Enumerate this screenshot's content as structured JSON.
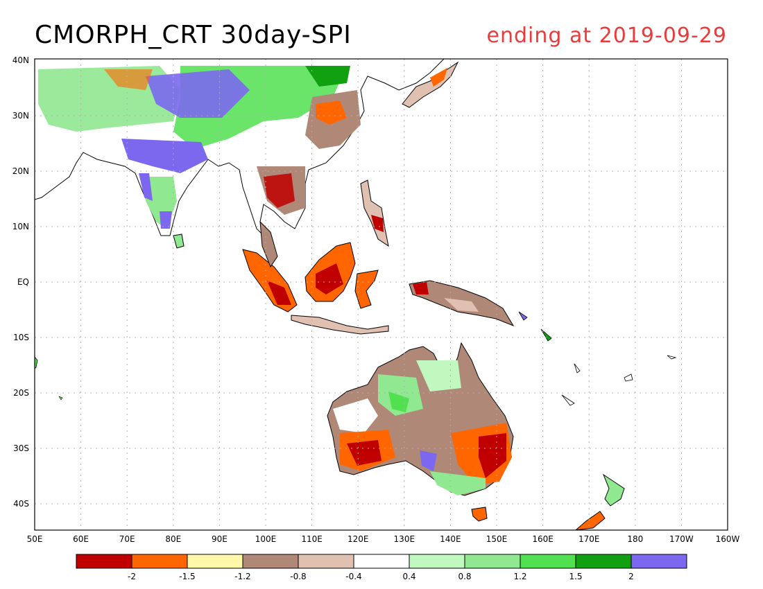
{
  "title": "CMORPH_CRT 30day-SPI",
  "subtitle": "ending at 2019-09-29",
  "map": {
    "lat_labels": [
      "40N",
      "30N",
      "20N",
      "10N",
      "EQ",
      "10S",
      "20S",
      "30S",
      "40S"
    ],
    "lon_labels": [
      "50E",
      "60E",
      "70E",
      "80E",
      "90E",
      "100E",
      "110E",
      "120E",
      "130E",
      "140E",
      "150E",
      "160E",
      "170E",
      "180",
      "170W",
      "160W"
    ]
  },
  "legend": {
    "colors": [
      "#c00000",
      "#ff6600",
      "#fff8a8",
      "#b08878",
      "#e0c0b0",
      "#ffffff",
      "#c0f8c0",
      "#90e890",
      "#50e050",
      "#10a010",
      "#7b68ee"
    ],
    "tick_labels": [
      "-2",
      "-1.5",
      "-1.2",
      "-0.8",
      "-0.4",
      "0.4",
      "0.8",
      "1.2",
      "1.5",
      "2"
    ]
  },
  "palette": {
    "title_right": "#e83c3c",
    "grid": "#b0b0b0"
  }
}
